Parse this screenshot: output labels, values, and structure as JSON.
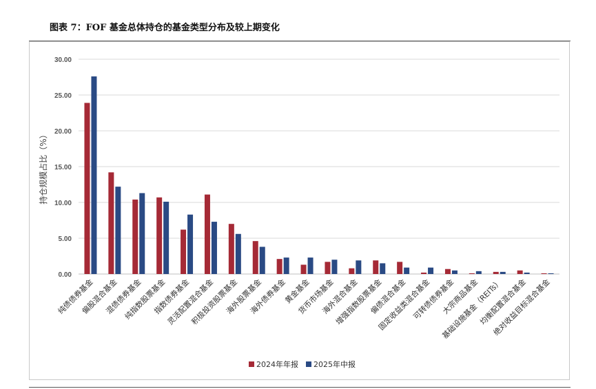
{
  "figure": {
    "title": "图表 7：FOF 基金总体持仓的基金类型分布及较上期变化"
  },
  "colors": {
    "series_1": "#a52a36",
    "series_2": "#2a4a84",
    "grid": "#d9d9d9",
    "axis": "#bfbfbf"
  },
  "chart_data": {
    "type": "bar",
    "title": "",
    "xlabel": "",
    "ylabel": "持仓规模占比（%）",
    "ylim": [
      0,
      30
    ],
    "yticks": [
      "0.00",
      "5.00",
      "10.00",
      "15.00",
      "20.00",
      "25.00",
      "30.00"
    ],
    "grid": true,
    "legend_position": "bottom",
    "categories": [
      "纯债债券基金",
      "偏股混合基金",
      "混债债券基金",
      "纯指数股票基金",
      "指数债券基金",
      "灵活配置混合基金",
      "积极投资股票基金",
      "海外股票基金",
      "海外债券基金",
      "黄金基金",
      "货币市场基金",
      "海外混合基金",
      "增强指数股票基金",
      "偏债混合基金",
      "固定收益类混合基金",
      "可转债债券基金",
      "大宗商品基金",
      "基础设施基金（REITs）",
      "均衡配置混合基金",
      "绝对收益目标混合基金"
    ],
    "series": [
      {
        "name": "2024年年报",
        "values": [
          23.9,
          14.2,
          10.4,
          10.7,
          6.2,
          11.1,
          7.0,
          4.6,
          2.1,
          1.3,
          1.7,
          0.8,
          1.9,
          1.7,
          0.2,
          0.7,
          0.1,
          0.3,
          0.5,
          0.1
        ]
      },
      {
        "name": "2025年中报",
        "values": [
          27.6,
          12.2,
          11.3,
          10.1,
          8.3,
          7.3,
          5.6,
          3.8,
          2.3,
          2.3,
          2.0,
          1.9,
          1.5,
          0.9,
          0.9,
          0.5,
          0.4,
          0.3,
          0.2,
          0.1
        ]
      }
    ]
  }
}
